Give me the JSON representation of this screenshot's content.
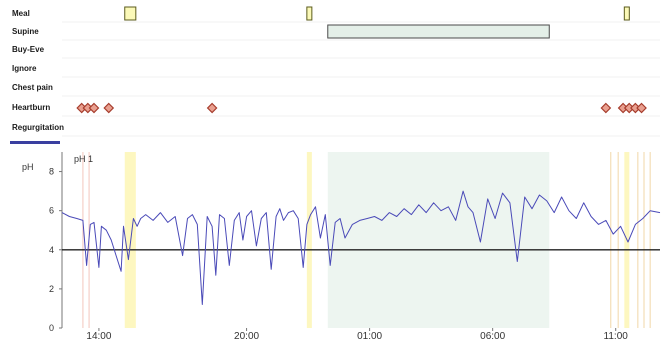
{
  "chart_data": {
    "type": "line",
    "title": "",
    "event_rows": [
      {
        "label": "Meal"
      },
      {
        "label": "Supine"
      },
      {
        "label": "Buy-Eve"
      },
      {
        "label": "Ignore"
      },
      {
        "label": "Chest pain"
      },
      {
        "label": "Heartburn"
      },
      {
        "label": "Regurgitation"
      }
    ],
    "meal_events": [
      [
        15.05,
        15.5
      ],
      [
        22.45,
        22.62
      ],
      [
        11.35,
        11.5
      ]
    ],
    "supine_events": [
      [
        23.3,
        8.3
      ]
    ],
    "heartburn_events": [
      13.3,
      13.55,
      13.8,
      14.4,
      18.6,
      10.6,
      11.3,
      11.55,
      11.8,
      12.05
    ],
    "ph_label": "pH",
    "series_label": "pH 1",
    "x_tick_labels": [
      "14:00",
      "20:00",
      "01:00",
      "06:00",
      "11:00"
    ],
    "x_tick_hours": [
      14,
      20,
      25,
      30,
      35
    ],
    "x_range_hours": [
      12.5,
      36.8
    ],
    "y_tick_labels": [
      "8",
      "6",
      "4",
      "2",
      "0"
    ],
    "y_ticks": [
      8,
      6,
      4,
      2,
      0
    ],
    "ylim": [
      0,
      9
    ],
    "threshold": 4,
    "highlight_bands": [
      [
        15.05,
        15.5
      ],
      [
        22.45,
        22.62
      ],
      [
        35.35,
        35.5
      ]
    ],
    "supine_band": [
      23.3,
      32.3
    ],
    "ph_series": {
      "x": [
        12.5,
        12.8,
        13.1,
        13.35,
        13.5,
        13.65,
        13.8,
        14.0,
        14.1,
        14.3,
        14.5,
        14.7,
        14.9,
        15.0,
        15.2,
        15.4,
        15.55,
        15.7,
        15.9,
        16.2,
        16.5,
        16.8,
        17.1,
        17.4,
        17.6,
        17.8,
        18.0,
        18.2,
        18.4,
        18.6,
        18.75,
        18.9,
        19.1,
        19.3,
        19.5,
        19.7,
        19.85,
        20.0,
        20.2,
        20.4,
        20.6,
        20.8,
        21.0,
        21.2,
        21.35,
        21.5,
        21.7,
        21.9,
        22.1,
        22.3,
        22.45,
        22.6,
        22.8,
        23.0,
        23.2,
        23.4,
        23.6,
        23.8,
        24.0,
        24.3,
        24.6,
        24.9,
        25.2,
        25.5,
        25.8,
        26.1,
        26.4,
        26.7,
        27.0,
        27.3,
        27.6,
        27.9,
        28.2,
        28.5,
        28.8,
        29.0,
        29.2,
        29.5,
        29.8,
        30.1,
        30.4,
        30.7,
        31.0,
        31.3,
        31.6,
        31.9,
        32.2,
        32.5,
        32.8,
        33.1,
        33.4,
        33.7,
        34.0,
        34.3,
        34.6,
        34.9,
        35.2,
        35.5,
        35.8,
        36.1,
        36.4,
        36.8
      ],
      "y": [
        5.9,
        5.7,
        5.6,
        5.5,
        3.2,
        5.3,
        5.4,
        3.1,
        5.2,
        5.0,
        4.5,
        3.7,
        2.9,
        5.2,
        3.5,
        5.6,
        5.2,
        5.6,
        5.8,
        5.5,
        5.9,
        5.4,
        5.7,
        3.7,
        5.6,
        5.8,
        5.3,
        1.2,
        5.7,
        5.2,
        2.7,
        5.8,
        5.6,
        3.2,
        5.5,
        5.9,
        4.5,
        5.7,
        6.0,
        4.2,
        5.6,
        5.9,
        3.0,
        5.7,
        6.1,
        5.5,
        5.9,
        6.0,
        5.6,
        3.1,
        5.3,
        5.8,
        6.2,
        4.6,
        5.8,
        3.2,
        5.4,
        5.6,
        4.6,
        5.3,
        5.5,
        5.6,
        5.7,
        5.5,
        5.9,
        5.7,
        6.1,
        5.8,
        6.3,
        5.9,
        6.4,
        6.0,
        6.2,
        5.5,
        7.0,
        6.2,
        5.9,
        4.4,
        6.6,
        5.6,
        6.9,
        6.4,
        3.4,
        6.7,
        6.1,
        6.8,
        6.5,
        5.9,
        6.7,
        6.0,
        5.6,
        6.4,
        5.7,
        5.3,
        5.5,
        4.8,
        5.2,
        4.4,
        5.3,
        5.6,
        6.0,
        5.9
      ]
    }
  }
}
